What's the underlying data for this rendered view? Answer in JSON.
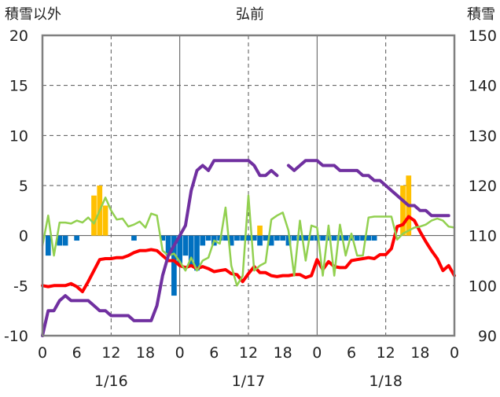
{
  "chart_data": {
    "type": "bar+line",
    "title": "弘前",
    "ylabel_left": "積雪以外",
    "ylabel_right": "積雪",
    "y_left": {
      "min": -10,
      "max": 20,
      "ticks": [
        "-10",
        "-5",
        "0",
        "5",
        "10",
        "15",
        "20"
      ]
    },
    "y_right": {
      "min": 90,
      "max": 150,
      "ticks": [
        "90",
        "100",
        "110",
        "120",
        "130",
        "140",
        "150"
      ]
    },
    "x": {
      "min": 0,
      "max": 72,
      "tick_positions": [
        0,
        6,
        12,
        18,
        24,
        30,
        36,
        42,
        48,
        54,
        60,
        66,
        72
      ],
      "tick_labels": [
        "0",
        "6",
        "12",
        "18",
        "0",
        "6",
        "12",
        "18",
        "0",
        "6",
        "12",
        "18",
        "0"
      ]
    },
    "date_labels": [
      {
        "x": 12,
        "label": "1/16"
      },
      {
        "x": 36,
        "label": "1/17"
      },
      {
        "x": 60,
        "label": "1/18"
      }
    ],
    "colors": {
      "snowfall": "#ffc000",
      "snowdepth_change": "#0070c0",
      "temperature": "#ff0000",
      "precip_line": "#92d050",
      "snowdepth": "#7030a0",
      "grid": "#555555",
      "frame": "#808080"
    },
    "series": [
      {
        "type": "bar",
        "color": "#ffc000",
        "x": [
          9,
          10,
          11,
          38,
          63,
          64
        ],
        "values": [
          4,
          5,
          3,
          1,
          5,
          6
        ]
      },
      {
        "type": "bar",
        "color": "#0070c0",
        "x": [
          1,
          3,
          4,
          6,
          16,
          21,
          22,
          23,
          24,
          25,
          26,
          27,
          28,
          29,
          30,
          31,
          32,
          33,
          34,
          35,
          36,
          37,
          38,
          39,
          40,
          41,
          42,
          43,
          44,
          45,
          46,
          47,
          48,
          49,
          50,
          51,
          52,
          53,
          54,
          55,
          56,
          57,
          58
        ],
        "values": [
          -2,
          -1,
          -1,
          -0.5,
          -0.5,
          -0.5,
          -2,
          -6,
          -3,
          -2,
          -3,
          -3.5,
          -1,
          -0.5,
          -1,
          -0.5,
          -0.5,
          -1,
          -0.5,
          -0.5,
          -0.5,
          -0.5,
          -1,
          -0.5,
          -1,
          -0.5,
          -0.5,
          -1,
          -0.5,
          -0.5,
          -0.5,
          -0.5,
          -0.5,
          -0.5,
          -0.5,
          -0.5,
          -0.5,
          -0.5,
          -0.5,
          -0.5,
          -0.5,
          -0.5,
          -0.5
        ]
      },
      {
        "type": "line",
        "axis": "left",
        "color": "#ff0000",
        "x": [
          0,
          1,
          2,
          3,
          4,
          5,
          6,
          7,
          8,
          9,
          10,
          11,
          12,
          13,
          14,
          15,
          16,
          17,
          18,
          19,
          20,
          21,
          22,
          23,
          24,
          25,
          26,
          27,
          28,
          29,
          30,
          31,
          32,
          33,
          34,
          35,
          36,
          37,
          38,
          39,
          40,
          41,
          42,
          43,
          44,
          45,
          46,
          47,
          48,
          49,
          50,
          51,
          52,
          53,
          54,
          55,
          56,
          57,
          58,
          59,
          60,
          61,
          62,
          63,
          64,
          65,
          66,
          67,
          68,
          69,
          70,
          71,
          72
        ],
        "values": [
          -5,
          -5.1,
          -5,
          -5,
          -5,
          -4.8,
          -5.1,
          -5.6,
          -4.6,
          -3.5,
          -2.4,
          -2.3,
          -2.3,
          -2.2,
          -2.2,
          -2,
          -1.7,
          -1.5,
          -1.5,
          -1.4,
          -1.5,
          -2,
          -2.5,
          -2.5,
          -3,
          -3.2,
          -3,
          -3.3,
          -3.1,
          -3.3,
          -3.6,
          -3.5,
          -3.4,
          -3.8,
          -3.9,
          -4.6,
          -3.8,
          -3.1,
          -3.7,
          -3.7,
          -4,
          -4.1,
          -4,
          -4,
          -3.9,
          -3.9,
          -4.2,
          -4,
          -2.4,
          -3.4,
          -2.6,
          -3.1,
          -3.2,
          -3.2,
          -2.5,
          -2.4,
          -2.3,
          -2.2,
          -2.3,
          -1.9,
          -1.9,
          -1.3,
          0.9,
          1.1,
          1.9,
          1.5,
          0.4,
          -0.6,
          -1.5,
          -2.3,
          -3.5,
          -3.0,
          -4.0
        ]
      },
      {
        "type": "line",
        "axis": "left",
        "color": "#92d050",
        "x": [
          0,
          1,
          2,
          3,
          4,
          5,
          6,
          7,
          8,
          9,
          10,
          11,
          12,
          13,
          14,
          15,
          16,
          17,
          18,
          19,
          20,
          21,
          22,
          23,
          24,
          25,
          26,
          27,
          28,
          29,
          30,
          31,
          32,
          33,
          34,
          35,
          36,
          37,
          38,
          39,
          40,
          41,
          42,
          43,
          44,
          45,
          46,
          47,
          48,
          49,
          50,
          51,
          52,
          53,
          54,
          55,
          56,
          57,
          58,
          59,
          60,
          61,
          62,
          63,
          64,
          65,
          66,
          67,
          68,
          69,
          70,
          71,
          72
        ],
        "values": [
          -1,
          2,
          -2,
          1.3,
          1.3,
          1.2,
          1.5,
          1.3,
          1.8,
          1.2,
          2.5,
          3.8,
          2.5,
          1.6,
          1.7,
          0.9,
          1.1,
          1.4,
          0.8,
          2.2,
          2,
          -1.5,
          -2,
          -1.8,
          -2.6,
          -3.5,
          -2.2,
          -3.5,
          -2.5,
          -2.2,
          -0.5,
          -0.8,
          2.8,
          -3,
          -5,
          -4,
          4,
          -3.5,
          -3,
          -2.7,
          1.6,
          2.0,
          2.3,
          0.5,
          -4,
          1.5,
          -2.5,
          1,
          0.8,
          -4,
          1,
          -4,
          1.1,
          -2,
          0.2,
          -2,
          -2,
          1.8,
          1.9,
          1.9,
          1.9,
          1.9,
          -0.4,
          0.2,
          0.5,
          0.8,
          0.9,
          1.1,
          1.5,
          1.7,
          1.5,
          0.9,
          0.8
        ]
      },
      {
        "type": "line",
        "axis": "right",
        "color": "#7030a0",
        "x": [
          0,
          1,
          2,
          3,
          4,
          5,
          6,
          7,
          8,
          9,
          10,
          11,
          12,
          13,
          14,
          15,
          16,
          17,
          18,
          19,
          20,
          21,
          22,
          23,
          24,
          25,
          26,
          27,
          28,
          29,
          30,
          31,
          32,
          33,
          34,
          35,
          36,
          37,
          38,
          39,
          40,
          41,
          null,
          43,
          44,
          45,
          46,
          47,
          48,
          49,
          50,
          51,
          52,
          53,
          54,
          55,
          56,
          57,
          58,
          59,
          60,
          61,
          62,
          63,
          64,
          65,
          66,
          67,
          68,
          69,
          70,
          71
        ],
        "values": [
          90,
          95,
          95,
          97,
          98,
          97,
          97,
          97,
          97,
          96,
          95,
          95,
          94,
          94,
          94,
          94,
          93,
          93,
          93,
          93,
          96,
          102,
          106,
          108,
          110,
          112,
          119,
          123,
          124,
          123,
          125,
          125,
          125,
          125,
          125,
          125,
          125,
          124,
          122,
          122,
          123,
          122,
          null,
          124,
          123,
          124,
          125,
          125,
          125,
          124,
          124,
          124,
          123,
          123,
          123,
          123,
          122,
          122,
          121,
          121,
          120,
          119,
          118,
          117,
          116,
          116,
          115,
          115,
          114,
          114,
          114,
          114
        ]
      }
    ]
  }
}
